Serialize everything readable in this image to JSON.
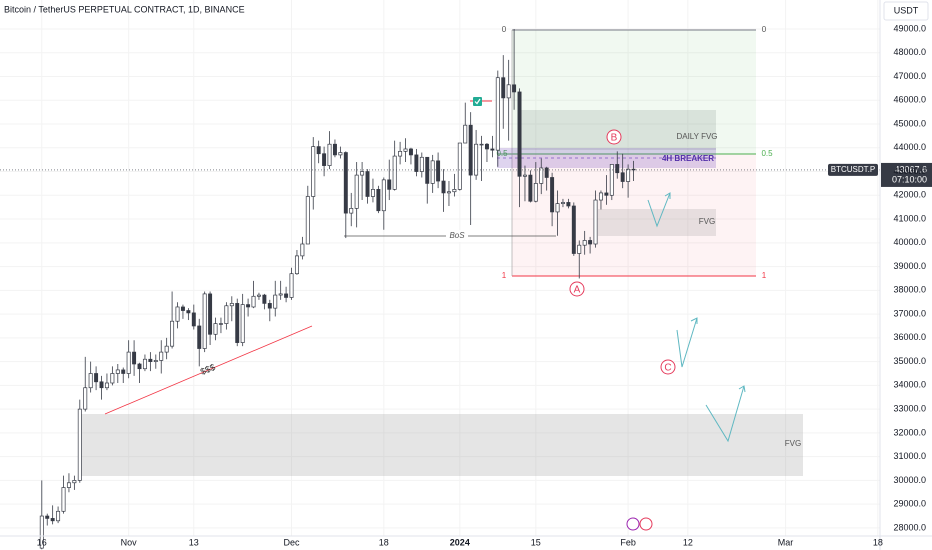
{
  "chart_data": {
    "type": "candlestick",
    "title": "Bitcoin / TetherUS PERPETUAL CONTRACT, 1D, BINANCE",
    "currency": "USDT",
    "ylim": [
      27660,
      50220
    ],
    "yticks": [
      {
        "value": 28000,
        "label": "28000.0"
      },
      {
        "value": 29000,
        "label": "29000.0"
      },
      {
        "value": 30000,
        "label": "30000.0"
      },
      {
        "value": 31000,
        "label": "31000.0"
      },
      {
        "value": 32000,
        "label": "32000.0"
      },
      {
        "value": 33000,
        "label": "33000.0"
      },
      {
        "value": 34000,
        "label": "34000.0"
      },
      {
        "value": 35000,
        "label": "35000.0"
      },
      {
        "value": 36000,
        "label": "36000.0"
      },
      {
        "value": 37000,
        "label": "37000.0"
      },
      {
        "value": 38000,
        "label": "38000.0"
      },
      {
        "value": 39000,
        "label": "39000.0"
      },
      {
        "value": 40000,
        "label": "40000.0"
      },
      {
        "value": 41000,
        "label": "41000.0"
      },
      {
        "value": 42000,
        "label": "42000.0"
      },
      {
        "value": 43000,
        "label": "43000.0"
      },
      {
        "value": 44000,
        "label": "44000.0"
      },
      {
        "value": 45000,
        "label": "45000.0"
      },
      {
        "value": 46000,
        "label": "46000.0"
      },
      {
        "value": 47000,
        "label": "47000.0"
      },
      {
        "value": 48000,
        "label": "48000.0"
      },
      {
        "value": 49000,
        "label": "49000.0"
      }
    ],
    "xlim": [
      -7.7,
      154.4
    ],
    "xticks": [
      {
        "value": 0,
        "label": "16"
      },
      {
        "value": 16,
        "label": "Nov"
      },
      {
        "value": 28,
        "label": "13"
      },
      {
        "value": 46,
        "label": "Dec"
      },
      {
        "value": 63,
        "label": "18"
      },
      {
        "value": 77,
        "label": "2024"
      },
      {
        "value": 91,
        "label": "15"
      },
      {
        "value": 108,
        "label": "Feb"
      },
      {
        "value": 119,
        "label": "12"
      },
      {
        "value": 137,
        "label": "Mar"
      },
      {
        "value": 154,
        "label": "18"
      }
    ],
    "up_color": "#ffffff",
    "down_color": "#363a45",
    "edge_color": "#363a45",
    "candles": [
      [
        27150,
        30000,
        27100,
        28500
      ],
      [
        28500,
        28600,
        28100,
        28400
      ],
      [
        28400,
        28950,
        28150,
        28300
      ],
      [
        28300,
        28900,
        28200,
        28700
      ],
      [
        28700,
        30200,
        28600,
        29700
      ],
      [
        29700,
        30300,
        29500,
        29900
      ],
      [
        29900,
        30200,
        29600,
        30000
      ],
      [
        30000,
        33400,
        29900,
        33000
      ],
      [
        33000,
        35200,
        32900,
        33900
      ],
      [
        33900,
        35000,
        33700,
        34500
      ],
      [
        34500,
        34800,
        33800,
        34150
      ],
      [
        34150,
        34400,
        33400,
        33900
      ],
      [
        33900,
        34500,
        33800,
        34100
      ],
      [
        34100,
        34800,
        34000,
        34500
      ],
      [
        34500,
        34900,
        34100,
        34650
      ],
      [
        34650,
        34750,
        34100,
        34500
      ],
      [
        34500,
        35900,
        34300,
        35400
      ],
      [
        35400,
        35900,
        34400,
        34900
      ],
      [
        34900,
        34950,
        34100,
        34700
      ],
      [
        34700,
        35300,
        34600,
        35100
      ],
      [
        35100,
        35400,
        34600,
        35000
      ],
      [
        35000,
        35300,
        34700,
        35050
      ],
      [
        35050,
        35900,
        34500,
        35400
      ],
      [
        35400,
        36000,
        35100,
        35650
      ],
      [
        35650,
        37950,
        35550,
        36700
      ],
      [
        36700,
        37500,
        36400,
        37300
      ],
      [
        37300,
        37400,
        36800,
        37150
      ],
      [
        37150,
        37250,
        36750,
        37050
      ],
      [
        37050,
        37400,
        36350,
        36500
      ],
      [
        36500,
        36800,
        34800,
        35550
      ],
      [
        35550,
        37950,
        35400,
        37850
      ],
      [
        37850,
        37950,
        35700,
        36150
      ],
      [
        36150,
        36850,
        35900,
        36600
      ],
      [
        36600,
        36850,
        36200,
        36600
      ],
      [
        36600,
        37500,
        36350,
        37350
      ],
      [
        37350,
        37750,
        36700,
        37450
      ],
      [
        37450,
        37650,
        35650,
        35800
      ],
      [
        35800,
        37850,
        35650,
        37400
      ],
      [
        37400,
        37650,
        36900,
        37300
      ],
      [
        37300,
        38400,
        37250,
        37750
      ],
      [
        37750,
        37900,
        37600,
        37800
      ],
      [
        37800,
        37850,
        37200,
        37450
      ],
      [
        37450,
        37600,
        36700,
        37250
      ],
      [
        37250,
        38400,
        36900,
        37800
      ],
      [
        37800,
        38400,
        37600,
        37850
      ],
      [
        37850,
        38150,
        37500,
        37700
      ],
      [
        37700,
        38950,
        37600,
        38700
      ],
      [
        38700,
        39700,
        38650,
        39450
      ],
      [
        39450,
        40250,
        39300,
        39950
      ],
      [
        39950,
        42400,
        39950,
        41950
      ],
      [
        41950,
        44450,
        41400,
        44050
      ],
      [
        44050,
        44300,
        43350,
        43750
      ],
      [
        43750,
        44050,
        42800,
        43250
      ],
      [
        43250,
        44700,
        43100,
        44150
      ],
      [
        44150,
        44350,
        43600,
        43700
      ],
      [
        43700,
        44050,
        43550,
        43800
      ],
      [
        43800,
        43850,
        40200,
        41250
      ],
      [
        41250,
        42100,
        40700,
        41450
      ],
      [
        41450,
        43400,
        40650,
        42850
      ],
      [
        42850,
        43400,
        41800,
        43000
      ],
      [
        43000,
        43100,
        41650,
        41950
      ],
      [
        41950,
        42700,
        41700,
        42250
      ],
      [
        42250,
        42400,
        41250,
        41350
      ],
      [
        41350,
        42750,
        40550,
        42650
      ],
      [
        42650,
        43500,
        41800,
        42250
      ],
      [
        42250,
        44300,
        42200,
        43650
      ],
      [
        43650,
        44250,
        43300,
        43850
      ],
      [
        43850,
        44400,
        43400,
        43950
      ],
      [
        43950,
        44000,
        43300,
        43700
      ],
      [
        43700,
        43950,
        42800,
        43000
      ],
      [
        43000,
        43800,
        42750,
        43600
      ],
      [
        43600,
        43600,
        41650,
        42500
      ],
      [
        42500,
        43700,
        42100,
        43450
      ],
      [
        43450,
        43800,
        42300,
        42600
      ],
      [
        42600,
        43100,
        41300,
        42100
      ],
      [
        42100,
        42600,
        41550,
        42150
      ],
      [
        42150,
        42900,
        41950,
        42250
      ],
      [
        42250,
        44200,
        42200,
        44200
      ],
      [
        44200,
        45900,
        44200,
        44950
      ],
      [
        44950,
        45500,
        40750,
        42850
      ],
      [
        42850,
        44750,
        42650,
        44150
      ],
      [
        44150,
        44500,
        42600,
        44150
      ],
      [
        44150,
        44200,
        43400,
        43950
      ],
      [
        43950,
        44500,
        43600,
        43900
      ],
      [
        43900,
        47250,
        43200,
        46950
      ],
      [
        46950,
        47900,
        44800,
        46100
      ],
      [
        46100,
        47700,
        44300,
        46650
      ],
      [
        46650,
        49000,
        45600,
        46350
      ],
      [
        46350,
        46500,
        41500,
        42800
      ],
      [
        42800,
        43250,
        41750,
        42850
      ],
      [
        42850,
        43050,
        41700,
        41750
      ],
      [
        41750,
        43400,
        41700,
        42500
      ],
      [
        42500,
        43550,
        42050,
        43150
      ],
      [
        43150,
        43200,
        42200,
        42750
      ],
      [
        42750,
        42950,
        40700,
        41300
      ],
      [
        41300,
        42200,
        40300,
        41650
      ],
      [
        41650,
        41850,
        41500,
        41700
      ],
      [
        41700,
        41850,
        41450,
        41550
      ],
      [
        41550,
        41700,
        39450,
        39550
      ],
      [
        39550,
        40100,
        38500,
        39900
      ],
      [
        39900,
        40500,
        39500,
        40100
      ],
      [
        40100,
        40250,
        39550,
        39950
      ],
      [
        39950,
        42200,
        39800,
        41800
      ],
      [
        41800,
        42200,
        41400,
        42100
      ],
      [
        42100,
        42850,
        41600,
        42000
      ],
      [
        42000,
        43300,
        41800,
        43300
      ],
      [
        43300,
        43850,
        42700,
        42950
      ],
      [
        42950,
        43750,
        42300,
        42580
      ],
      [
        42580,
        43300,
        41900,
        43100
      ],
      [
        43100,
        43450,
        42600,
        43067.6
      ]
    ],
    "price_label": {
      "symbol": "BTCUSDT.P",
      "price": 43067.6,
      "countdown": "07:10:00"
    },
    "annotations": {
      "fib_levels": [
        0,
        0.5,
        1
      ],
      "daily_fvg": "DAILY FVG",
      "breaker": "4H BREAKER",
      "fvg_small": "FVG",
      "fvg_large": "FVG",
      "bos": "BoS",
      "liquidity": "$$$",
      "point_a": "A",
      "point_b": "B",
      "point_c": "C"
    }
  }
}
